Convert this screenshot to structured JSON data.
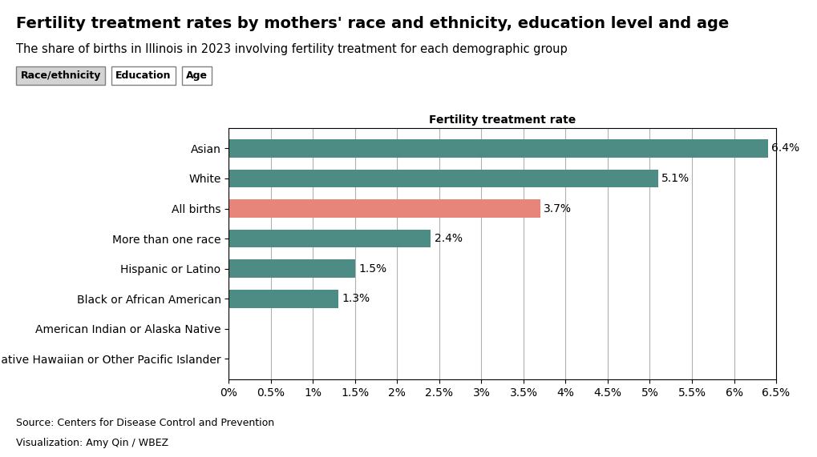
{
  "chart_data": {
    "type": "bar",
    "orientation": "horizontal",
    "title": "Fertility treatment rates by mothers' race and ethnicity, education level and age",
    "subtitle": "The share of births in Illinois in 2023 involving fertility treatment for each demographic group",
    "xlabel": "Fertility treatment rate",
    "annotations": [
      "Race/ethnicity",
      "Education",
      "Age",
      "Source: Centers for Disease Control and Prevention",
      "Visualization: Amy Qin / WBEZ"
    ],
    "categories": [
      "Asian",
      "White",
      "All births",
      "More than one race",
      "Hispanic or Latino",
      "Black or African American",
      "American Indian or Alaska Native",
      "Native Hawaiian or Other Pacific Islander"
    ],
    "values": [
      6.4,
      5.1,
      3.7,
      2.4,
      1.5,
      1.3,
      0,
      0
    ],
    "value_labels": [
      "6.4%",
      "5.1%",
      "3.7%",
      "2.4%",
      "1.5%",
      "1.3%",
      null,
      null
    ],
    "colors": [
      "#4d8b85",
      "#4d8b85",
      "#e8857a",
      "#4d8b85",
      "#4d8b85",
      "#4d8b85",
      "#4d8b85",
      "#4d8b85"
    ],
    "data_labels": true,
    "xlim": [
      0,
      6.5
    ],
    "xticks": [
      {
        "value": 0,
        "label": "0%"
      },
      {
        "value": 0.5,
        "label": "0.5%"
      },
      {
        "value": 1.0,
        "label": "1%"
      },
      {
        "value": 1.5,
        "label": "1.5%"
      },
      {
        "value": 2.0,
        "label": "2%"
      },
      {
        "value": 2.5,
        "label": "2.5%"
      },
      {
        "value": 3.0,
        "label": "3%"
      },
      {
        "value": 3.5,
        "label": "3.5%"
      },
      {
        "value": 4.0,
        "label": "4%"
      },
      {
        "value": 4.5,
        "label": "4.5%"
      },
      {
        "value": 5.0,
        "label": "5%"
      },
      {
        "value": 5.5,
        "label": "5.5%"
      },
      {
        "value": 6.0,
        "label": "6%"
      },
      {
        "value": 6.5,
        "label": "6.5%"
      }
    ],
    "grid": true
  }
}
